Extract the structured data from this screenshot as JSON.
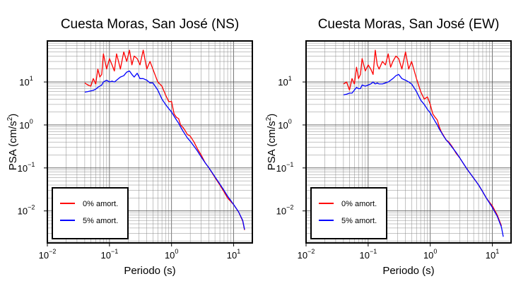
{
  "chart_data": [
    {
      "type": "line",
      "title": "Cuesta Moras, San José (NS)",
      "xlabel": "Periodo (s)",
      "ylabel": "PSA (cm/s²)",
      "xscale": "log",
      "yscale": "log",
      "xlim": [
        0.01,
        20
      ],
      "ylim": [
        0.0018,
        90
      ],
      "grid": true,
      "legend_position": "bottom-left",
      "x_ticks": [
        {
          "base": "10",
          "exp": "−2"
        },
        {
          "base": "10",
          "exp": "−1"
        },
        {
          "base": "10",
          "exp": "0"
        },
        {
          "base": "10",
          "exp": "1"
        }
      ],
      "y_ticks": [
        {
          "base": "10",
          "exp": "−2"
        },
        {
          "base": "10",
          "exp": "−1"
        },
        {
          "base": "10",
          "exp": "0"
        },
        {
          "base": "10",
          "exp": "1"
        }
      ],
      "series": [
        {
          "name": "0% amort.",
          "color": "#ff0000",
          "x": [
            0.04,
            0.045,
            0.05,
            0.055,
            0.06,
            0.065,
            0.07,
            0.075,
            0.08,
            0.09,
            0.1,
            0.11,
            0.12,
            0.13,
            0.14,
            0.15,
            0.17,
            0.19,
            0.21,
            0.23,
            0.25,
            0.28,
            0.31,
            0.35,
            0.4,
            0.45,
            0.5,
            0.6,
            0.7,
            0.8,
            0.9,
            1.0,
            1.1,
            1.2,
            1.3,
            1.4,
            1.5,
            1.6,
            1.8,
            2.0,
            2.3,
            2.6,
            3.0,
            3.5,
            4.0,
            5.0,
            6.0,
            7.0,
            8.0,
            10.0,
            12.0,
            14.0,
            15.0
          ],
          "y": [
            9.5,
            8.5,
            8.0,
            12.0,
            9.0,
            20.0,
            13.0,
            15.0,
            45.0,
            20.0,
            35.0,
            25.0,
            18.0,
            45.0,
            30.0,
            20.0,
            50.0,
            30.0,
            55.0,
            25.0,
            40.0,
            35.0,
            25.0,
            55.0,
            20.0,
            30.0,
            20.0,
            10.0,
            8.0,
            5.0,
            3.5,
            3.5,
            1.8,
            1.5,
            1.4,
            1.0,
            0.9,
            0.8,
            0.6,
            0.55,
            0.4,
            0.28,
            0.2,
            0.13,
            0.1,
            0.06,
            0.04,
            0.028,
            0.02,
            0.014,
            0.0095,
            0.0058,
            0.0036
          ]
        },
        {
          "name": "5% amort.",
          "color": "#0000ff",
          "x": [
            0.04,
            0.045,
            0.05,
            0.055,
            0.06,
            0.065,
            0.07,
            0.075,
            0.08,
            0.09,
            0.1,
            0.11,
            0.12,
            0.13,
            0.14,
            0.15,
            0.17,
            0.19,
            0.21,
            0.23,
            0.25,
            0.28,
            0.31,
            0.35,
            0.4,
            0.45,
            0.5,
            0.6,
            0.7,
            0.8,
            0.9,
            1.0,
            1.1,
            1.2,
            1.3,
            1.4,
            1.5,
            1.6,
            1.8,
            2.0,
            2.3,
            2.6,
            3.0,
            3.5,
            4.0,
            5.0,
            6.0,
            7.0,
            8.0,
            10.0,
            12.0,
            14.0,
            15.0
          ],
          "y": [
            5.8,
            6.0,
            6.2,
            6.4,
            6.8,
            7.5,
            8.0,
            8.5,
            10.0,
            11.0,
            10.0,
            10.5,
            10.0,
            11.0,
            12.0,
            13.0,
            14.0,
            17.0,
            18.0,
            15.0,
            13.0,
            16.0,
            12.0,
            12.0,
            11.0,
            9.5,
            9.5,
            6.5,
            4.0,
            3.0,
            2.4,
            2.0,
            1.6,
            1.3,
            1.1,
            0.9,
            0.75,
            0.65,
            0.5,
            0.42,
            0.32,
            0.25,
            0.18,
            0.13,
            0.1,
            0.062,
            0.042,
            0.03,
            0.022,
            0.014,
            0.0095,
            0.006,
            0.0037
          ]
        }
      ]
    },
    {
      "type": "line",
      "title": "Cuesta Moras, San José (EW)",
      "xlabel": "Periodo (s)",
      "ylabel": "PSA (cm/s²)",
      "xscale": "log",
      "yscale": "log",
      "xlim": [
        0.01,
        20
      ],
      "ylim": [
        0.0018,
        90
      ],
      "grid": true,
      "legend_position": "bottom-left",
      "x_ticks": [
        {
          "base": "10",
          "exp": "−2"
        },
        {
          "base": "10",
          "exp": "−1"
        },
        {
          "base": "10",
          "exp": "0"
        },
        {
          "base": "10",
          "exp": "1"
        }
      ],
      "y_ticks": [
        {
          "base": "10",
          "exp": "−2"
        },
        {
          "base": "10",
          "exp": "−1"
        },
        {
          "base": "10",
          "exp": "0"
        },
        {
          "base": "10",
          "exp": "1"
        }
      ],
      "series": [
        {
          "name": "0% amort.",
          "color": "#ff0000",
          "x": [
            0.04,
            0.045,
            0.05,
            0.055,
            0.06,
            0.065,
            0.07,
            0.075,
            0.08,
            0.09,
            0.1,
            0.11,
            0.12,
            0.13,
            0.14,
            0.15,
            0.17,
            0.19,
            0.21,
            0.23,
            0.25,
            0.28,
            0.31,
            0.35,
            0.4,
            0.45,
            0.5,
            0.6,
            0.7,
            0.8,
            0.9,
            1.0,
            1.1,
            1.2,
            1.3,
            1.4,
            1.5,
            1.6,
            1.8,
            2.0,
            2.3,
            2.6,
            3.0,
            3.5,
            4.0,
            5.0,
            6.0,
            7.0,
            8.0,
            10.0,
            12.0,
            14.0
          ],
          "y": [
            9.0,
            10.0,
            6.5,
            12.0,
            9.0,
            22.0,
            12.0,
            15.0,
            35.0,
            18.0,
            25.0,
            20.0,
            15.0,
            55.0,
            25.0,
            20.0,
            30.0,
            25.0,
            45.0,
            22.0,
            30.0,
            40.0,
            35.0,
            20.0,
            50.0,
            20.0,
            30.0,
            12.0,
            6.0,
            4.0,
            4.5,
            3.0,
            1.8,
            1.5,
            1.3,
            0.9,
            0.7,
            0.6,
            0.45,
            0.4,
            0.3,
            0.22,
            0.17,
            0.12,
            0.09,
            0.058,
            0.04,
            0.028,
            0.02,
            0.013,
            0.008,
            0.0045
          ]
        },
        {
          "name": "5% amort.",
          "color": "#0000ff",
          "x": [
            0.04,
            0.045,
            0.05,
            0.055,
            0.06,
            0.065,
            0.07,
            0.075,
            0.08,
            0.09,
            0.1,
            0.11,
            0.12,
            0.13,
            0.14,
            0.15,
            0.17,
            0.19,
            0.21,
            0.23,
            0.25,
            0.28,
            0.31,
            0.35,
            0.4,
            0.45,
            0.5,
            0.6,
            0.7,
            0.8,
            0.9,
            1.0,
            1.1,
            1.2,
            1.3,
            1.4,
            1.5,
            1.6,
            1.8,
            2.0,
            2.3,
            2.6,
            3.0,
            3.5,
            4.0,
            5.0,
            6.0,
            7.0,
            8.0,
            10.0,
            12.0,
            14.0,
            15.0
          ],
          "y": [
            5.0,
            5.2,
            5.5,
            5.5,
            6.5,
            7.5,
            7.0,
            7.0,
            8.5,
            8.0,
            8.5,
            9.0,
            10.0,
            9.0,
            9.5,
            9.0,
            9.0,
            9.5,
            10.0,
            11.0,
            12.0,
            14.0,
            15.0,
            12.0,
            11.0,
            10.0,
            9.0,
            6.0,
            3.8,
            3.0,
            2.3,
            1.9,
            1.5,
            1.2,
            1.0,
            0.8,
            0.68,
            0.58,
            0.45,
            0.38,
            0.29,
            0.23,
            0.17,
            0.12,
            0.09,
            0.058,
            0.04,
            0.028,
            0.02,
            0.012,
            0.0075,
            0.0042,
            0.0025
          ]
        }
      ]
    }
  ]
}
